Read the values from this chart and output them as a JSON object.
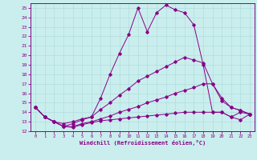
{
  "xlabel": "Windchill (Refroidissement éolien,°C)",
  "background_color": "#caeeed",
  "line_color": "#880088",
  "grid_color": "#b0dede",
  "xlim": [
    -0.5,
    23.5
  ],
  "ylim": [
    12,
    25.5
  ],
  "xticks": [
    0,
    1,
    2,
    3,
    4,
    5,
    6,
    7,
    8,
    9,
    10,
    11,
    12,
    13,
    14,
    15,
    16,
    17,
    18,
    19,
    20,
    21,
    22,
    23
  ],
  "yticks": [
    12,
    13,
    14,
    15,
    16,
    17,
    18,
    19,
    20,
    21,
    22,
    23,
    24,
    25
  ],
  "series": [
    [
      14.5,
      13.5,
      13.0,
      12.5,
      12.8,
      13.2,
      13.5,
      15.5,
      18.0,
      20.2,
      22.2,
      25.0,
      22.5,
      24.5,
      25.3,
      24.8,
      24.5,
      23.2,
      19.0,
      14.0,
      14.0,
      13.5,
      14.0,
      13.8
    ],
    [
      14.5,
      13.5,
      13.0,
      12.8,
      13.0,
      13.3,
      13.5,
      14.3,
      15.0,
      15.8,
      16.5,
      17.3,
      17.8,
      18.3,
      18.8,
      19.3,
      19.8,
      19.5,
      19.2,
      17.0,
      15.2,
      14.5,
      14.2,
      13.8
    ],
    [
      14.5,
      13.5,
      13.0,
      12.5,
      12.5,
      12.8,
      13.0,
      13.3,
      13.6,
      14.0,
      14.3,
      14.6,
      15.0,
      15.3,
      15.6,
      16.0,
      16.3,
      16.6,
      17.0,
      17.0,
      15.5,
      14.5,
      14.2,
      13.8
    ],
    [
      14.5,
      13.5,
      13.0,
      12.5,
      12.4,
      12.7,
      12.9,
      13.1,
      13.2,
      13.3,
      13.4,
      13.5,
      13.6,
      13.7,
      13.8,
      13.9,
      14.0,
      14.0,
      14.0,
      14.0,
      14.0,
      13.5,
      13.2,
      13.8
    ]
  ]
}
